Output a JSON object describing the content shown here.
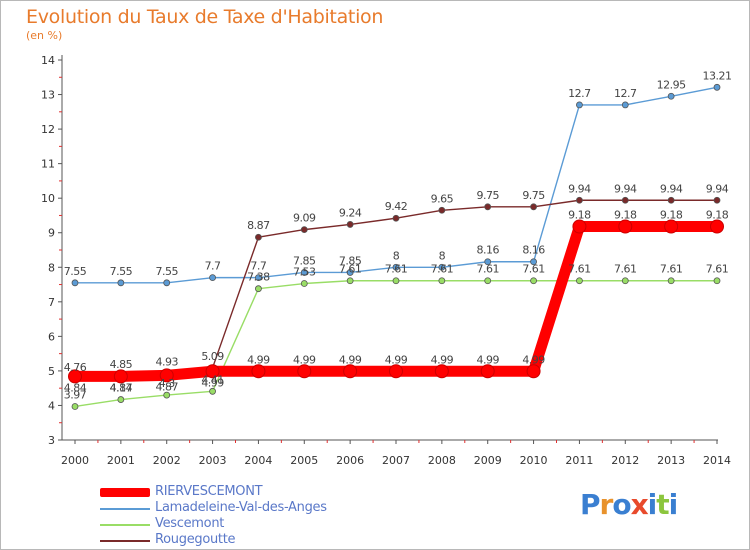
{
  "title": "Evolution du Taux de Taxe d'Habitation",
  "unit_label": "(en %)",
  "logo": {
    "text": "Proxiti",
    "colors": [
      "#3a7fd1",
      "#e8922c",
      "#3a7fd1",
      "#e84a2c",
      "#3a7fd1",
      "#8cc63e",
      "#3a7fd1"
    ]
  },
  "chart_data": {
    "type": "line",
    "title": "Evolution du Taux de Taxe d'Habitation",
    "ylabel": "(en %)",
    "x": [
      "2000",
      "2001",
      "2002",
      "2003",
      "2004",
      "2005",
      "2006",
      "2007",
      "2008",
      "2009",
      "2010",
      "2011",
      "2012",
      "2013",
      "2014"
    ],
    "ylim": [
      3,
      14
    ],
    "yticks": [
      "3",
      "4",
      "5",
      "6",
      "7",
      "8",
      "9",
      "10",
      "11",
      "12",
      "13",
      "14"
    ],
    "grid": false,
    "legend_position": "bottom-left",
    "series": [
      {
        "name": "RIERVESCEMONT",
        "color": "#ff0000",
        "values": [
          4.84,
          4.84,
          4.87,
          4.99,
          4.99,
          4.99,
          4.99,
          4.99,
          4.99,
          4.99,
          4.99,
          9.18,
          9.18,
          9.18,
          9.18
        ],
        "labels": [
          "4.84",
          "4.84",
          "4.87",
          "4.99",
          "4.99",
          "4.99",
          "4.99",
          "4.99",
          "4.99",
          "4.99",
          "4.99",
          "9.18",
          "9.18",
          "9.18",
          "9.18"
        ]
      },
      {
        "name": "Lamadeleine-Val-des-Anges",
        "color": "#5b9bd5",
        "values": [
          7.55,
          7.55,
          7.55,
          7.7,
          7.7,
          7.85,
          7.85,
          8,
          8,
          8.16,
          8.16,
          12.7,
          12.7,
          12.95,
          13.21
        ],
        "labels": [
          "7.55",
          "7.55",
          "7.55",
          "7.7",
          "7.7",
          "7.85",
          "7.85",
          "8",
          "8",
          "8.16",
          "8.16",
          "12.7",
          "12.7",
          "12.95",
          "13.21"
        ]
      },
      {
        "name": "Vescemont",
        "color": "#99dd66",
        "values": [
          3.97,
          4.17,
          4.3,
          4.41,
          7.38,
          7.53,
          7.61,
          7.61,
          7.61,
          7.61,
          7.61,
          7.61,
          7.61,
          7.61,
          7.61
        ],
        "labels": [
          "3.97",
          "4.17",
          "4.3",
          "4.41",
          "7.38",
          "7.53",
          "7.61",
          "7.61",
          "7.61",
          "7.61",
          "7.61",
          "7.61",
          "7.61",
          "7.61",
          "7.61"
        ]
      },
      {
        "name": "Rougegoutte",
        "color": "#7a2a2a",
        "values": [
          4.76,
          4.85,
          4.93,
          5.09,
          8.87,
          9.09,
          9.24,
          9.42,
          9.65,
          9.75,
          9.75,
          9.94,
          9.94,
          9.94,
          9.94
        ],
        "labels": [
          "4.76",
          "4.85",
          "4.93",
          "5.09",
          "8.87",
          "9.09",
          "9.24",
          "9.42",
          "9.65",
          "9.75",
          "9.75",
          "9.94",
          "9.94",
          "9.94",
          "9.94"
        ]
      }
    ]
  }
}
